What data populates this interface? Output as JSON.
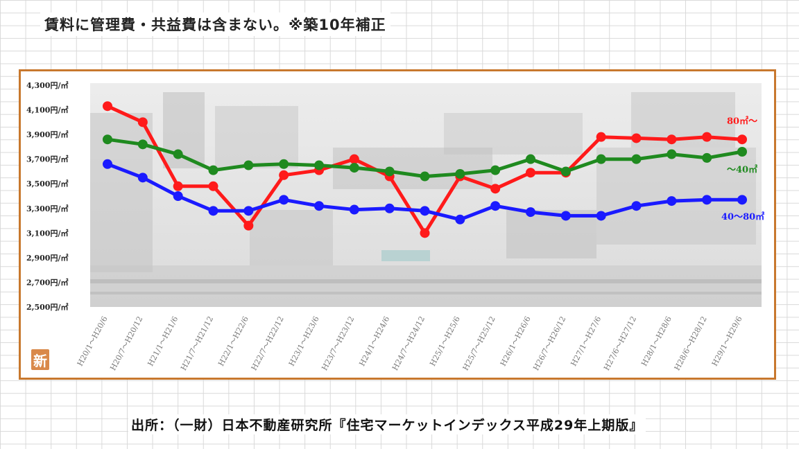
{
  "header": {
    "note": "賃料に管理費・共益費は含まない。※築10年補正"
  },
  "footer": {
    "source": "出所：（一財）日本不動産研究所『住宅マーケットインデックス平成29年上期版』"
  },
  "badge": {
    "label": "新"
  },
  "chart_data": {
    "type": "line",
    "y_tick_labels": [
      "4,300円/㎡",
      "4,100円/㎡",
      "3,900円/㎡",
      "3,700円/㎡",
      "3,500円/㎡",
      "3,300円/㎡",
      "3,100円/㎡",
      "2,900円/㎡",
      "2,700円/㎡",
      "2,500円/㎡"
    ],
    "ylim": [
      2500,
      4300
    ],
    "categories": [
      "H20/1～H20/6",
      "H20/7～H20/12",
      "H21/1～H21/6",
      "H21/7～H21/12",
      "H22/1～H22/6",
      "H22/7～H22/12",
      "H23/1～H23/6",
      "H23/7～H23/12",
      "H24/1～H24/6",
      "H24/7～H24/12",
      "H25/1～H25/6",
      "H25/7～H25/12",
      "H26/1～H26/6",
      "H26/7～H26/12",
      "H27/1～H27/6",
      "H27/6～H27/12",
      "H28/1～H28/6",
      "H28/6～H28/12",
      "H29/1～H29/6"
    ],
    "series": [
      {
        "name": "80㎡～",
        "color": "#ff1a1a",
        "values": [
          4130,
          4000,
          3480,
          3480,
          3160,
          3570,
          3610,
          3700,
          3560,
          3100,
          3560,
          3460,
          3590,
          3590,
          3880,
          3870,
          3860,
          3880,
          3860
        ]
      },
      {
        "name": "～40㎡",
        "color": "#1f8a1f",
        "values": [
          3860,
          3820,
          3740,
          3610,
          3650,
          3660,
          3650,
          3630,
          3600,
          3560,
          3580,
          3610,
          3700,
          3600,
          3700,
          3700,
          3740,
          3710,
          3760
        ]
      },
      {
        "name": "40～80㎡",
        "color": "#1a1aff",
        "values": [
          3660,
          3550,
          3400,
          3280,
          3280,
          3370,
          3320,
          3290,
          3300,
          3280,
          3210,
          3320,
          3270,
          3240,
          3240,
          3320,
          3360,
          3370,
          3370
        ]
      }
    ],
    "grid": false,
    "legend": "right-end-labels",
    "background": "city-photo"
  }
}
